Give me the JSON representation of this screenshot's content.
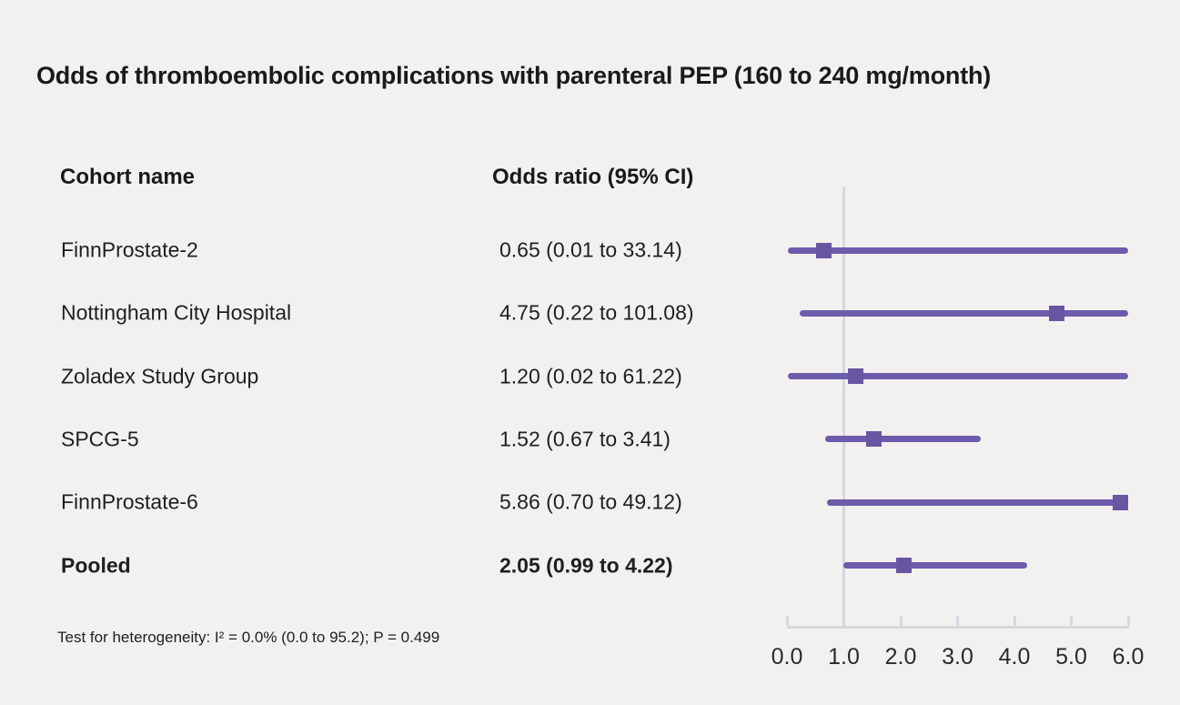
{
  "title": "Odds of thromboembolic complications with parenteral PEP (160 to 240 mg/month)",
  "columns": {
    "cohort": "Cohort name",
    "odds_ratio": "Odds ratio (95% CI)"
  },
  "footnote": "Test for heterogeneity: I² = 0.0% (0.0 to 95.2); P = 0.499",
  "colors": {
    "background": "#f2f1ef",
    "ci_line": "#6c5cab",
    "marker": "#6757a3",
    "axis": "#d5d8df",
    "text": "#1f1f1f"
  },
  "chart_data": {
    "type": "scatter",
    "subtype": "forest-plot",
    "title": "Odds of thromboembolic complications with parenteral PEP (160 to 240 mg/month)",
    "xlabel": "Odds ratio",
    "xlim": [
      0.0,
      6.0
    ],
    "x_ticks": [
      "0.0",
      "1.0",
      "2.0",
      "3.0",
      "4.0",
      "5.0",
      "6.0"
    ],
    "x_tick_values": [
      0.0,
      1.0,
      2.0,
      3.0,
      4.0,
      5.0,
      6.0
    ],
    "reference_line_x": 1.0,
    "grid": false,
    "legend": "none",
    "rows": [
      {
        "label": "FinnProstate-2",
        "or": 0.65,
        "ci_low": 0.01,
        "ci_high": 33.14,
        "display": "0.65 (0.01 to 33.14)",
        "bold": false
      },
      {
        "label": "Nottingham City Hospital",
        "or": 4.75,
        "ci_low": 0.22,
        "ci_high": 101.08,
        "display": "4.75 (0.22 to 101.08)",
        "bold": false
      },
      {
        "label": "Zoladex Study Group",
        "or": 1.2,
        "ci_low": 0.02,
        "ci_high": 61.22,
        "display": "1.20 (0.02 to 61.22)",
        "bold": false
      },
      {
        "label": "SPCG-5",
        "or": 1.52,
        "ci_low": 0.67,
        "ci_high": 3.41,
        "display": "1.52 (0.67 to 3.41)",
        "bold": false
      },
      {
        "label": "FinnProstate-6",
        "or": 5.86,
        "ci_low": 0.7,
        "ci_high": 49.12,
        "display": "5.86 (0.70 to 49.12)",
        "bold": false
      },
      {
        "label": "Pooled",
        "or": 2.05,
        "ci_low": 0.99,
        "ci_high": 4.22,
        "display": "2.05 (0.99 to 4.22)",
        "bold": true
      }
    ]
  }
}
